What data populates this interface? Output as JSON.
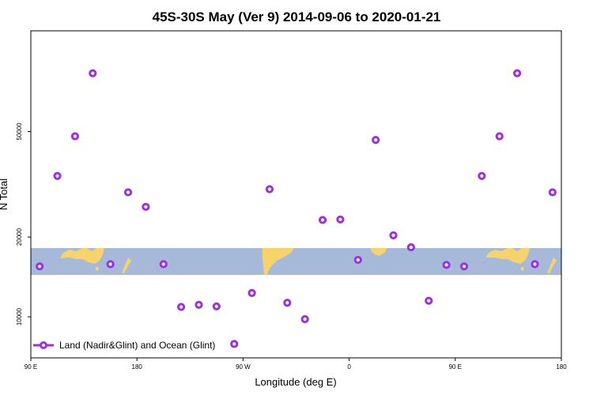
{
  "chart_data": {
    "type": "scatter",
    "title": "45S-30S May (Ver 9)   2014-09-06 to 2020-01-21",
    "xlabel": "Longitude (deg E)",
    "ylabel": "N Total",
    "x_scale": "linear",
    "y_scale": "log",
    "xlim": [
      90,
      540
    ],
    "ylim": [
      7000,
      120000
    ],
    "x_ticks": [
      {
        "value": 90,
        "label": "90 E"
      },
      {
        "value": 180,
        "label": "180"
      },
      {
        "value": 270,
        "label": "90 W"
      },
      {
        "value": 360,
        "label": "0"
      },
      {
        "value": 450,
        "label": "90 E"
      },
      {
        "value": 540,
        "label": "180"
      }
    ],
    "y_ticks": [
      {
        "value": 10000,
        "label": "10000"
      },
      {
        "value": 20000,
        "label": "20000"
      },
      {
        "value": 50000,
        "label": "50000"
      }
    ],
    "grid": false,
    "legend": {
      "position": "bottom-left",
      "entries": [
        "Land (Nadir&Glint) and Ocean (Glint)"
      ]
    },
    "map_band": {
      "description": "world map strip",
      "y_from": 14400,
      "y_to": 16400
    },
    "colors": {
      "series": "#9b30e8",
      "ocean": "#a6b9d9",
      "land": "#f7d46b"
    },
    "series": [
      {
        "name": "Land (Nadir&Glint) and Ocean (Glint)",
        "points": [
          [
            97.5,
            15500
          ],
          [
            112.5,
            34000
          ],
          [
            127.5,
            48000
          ],
          [
            142.5,
            83000
          ],
          [
            157.5,
            15800
          ],
          [
            172.5,
            29500
          ],
          [
            187.5,
            26000
          ],
          [
            202.5,
            15800
          ],
          [
            217.5,
            10900
          ],
          [
            232.5,
            11100
          ],
          [
            247.5,
            10950
          ],
          [
            262.5,
            7900
          ],
          [
            277.5,
            12300
          ],
          [
            292.5,
            30300
          ],
          [
            307.5,
            11300
          ],
          [
            322.5,
            9800
          ],
          [
            337.5,
            23200
          ],
          [
            352.5,
            23300
          ],
          [
            367.5,
            16400
          ],
          [
            382.5,
            46500
          ],
          [
            397.5,
            20300
          ],
          [
            412.5,
            18300
          ],
          [
            427.5,
            11500
          ],
          [
            442.5,
            15700
          ],
          [
            457.5,
            15500
          ],
          [
            472.5,
            34000
          ],
          [
            487.5,
            48000
          ],
          [
            502.5,
            83000
          ],
          [
            517.5,
            15800
          ],
          [
            532.5,
            29500
          ]
        ]
      }
    ]
  }
}
